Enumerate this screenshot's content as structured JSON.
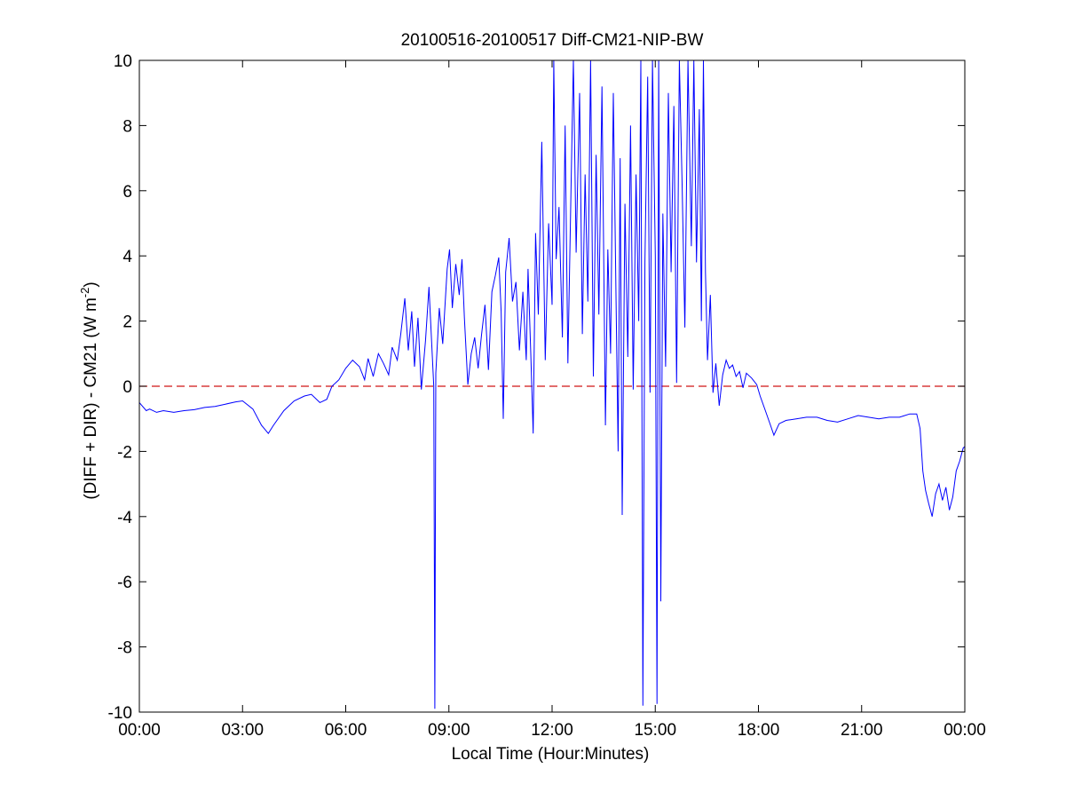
{
  "chart_data": {
    "type": "line",
    "title": "20100516-20100517 Diff-CM21-NIP-BW",
    "xlabel": "Local Time (Hour:Minutes)",
    "ylabel_main": "(DIFF + DIR) - CM21 (W m",
    "ylabel_sup": "-2",
    "ylabel_close": ")",
    "xlim": [
      0,
      24
    ],
    "ylim": [
      -10,
      10
    ],
    "x_ticks": [
      0,
      3,
      6,
      9,
      12,
      15,
      18,
      21,
      24
    ],
    "x_tick_labels": [
      "00:00",
      "03:00",
      "06:00",
      "09:00",
      "12:00",
      "15:00",
      "18:00",
      "21:00",
      "00:00"
    ],
    "y_ticks": [
      -10,
      -8,
      -6,
      -4,
      -2,
      0,
      2,
      4,
      6,
      8,
      10
    ],
    "y_tick_labels": [
      "-10",
      "-8",
      "-6",
      "-4",
      "-2",
      "0",
      "2",
      "4",
      "6",
      "8",
      "10"
    ],
    "colors": {
      "series": "#0000ff",
      "reference": "#d01515"
    },
    "reference_line": {
      "y": 0,
      "style": "dashed"
    },
    "series": [
      {
        "color": "#0000ff",
        "points": [
          [
            0.0,
            -0.5
          ],
          [
            0.2,
            -0.75
          ],
          [
            0.3,
            -0.7
          ],
          [
            0.5,
            -0.8
          ],
          [
            0.7,
            -0.75
          ],
          [
            1.0,
            -0.8
          ],
          [
            1.3,
            -0.75
          ],
          [
            1.6,
            -0.72
          ],
          [
            1.9,
            -0.65
          ],
          [
            2.2,
            -0.62
          ],
          [
            2.5,
            -0.55
          ],
          [
            2.8,
            -0.48
          ],
          [
            3.0,
            -0.45
          ],
          [
            3.3,
            -0.7
          ],
          [
            3.55,
            -1.2
          ],
          [
            3.75,
            -1.45
          ],
          [
            3.9,
            -1.2
          ],
          [
            4.2,
            -0.75
          ],
          [
            4.5,
            -0.45
          ],
          [
            4.8,
            -0.3
          ],
          [
            5.0,
            -0.25
          ],
          [
            5.25,
            -0.5
          ],
          [
            5.45,
            -0.4
          ],
          [
            5.6,
            0.0
          ],
          [
            5.8,
            0.2
          ],
          [
            6.0,
            0.55
          ],
          [
            6.2,
            0.8
          ],
          [
            6.4,
            0.6
          ],
          [
            6.55,
            0.2
          ],
          [
            6.65,
            0.85
          ],
          [
            6.8,
            0.3
          ],
          [
            6.95,
            1.0
          ],
          [
            7.1,
            0.7
          ],
          [
            7.25,
            0.35
          ],
          [
            7.35,
            1.2
          ],
          [
            7.5,
            0.8
          ],
          [
            7.6,
            1.6
          ],
          [
            7.72,
            2.7
          ],
          [
            7.82,
            1.1
          ],
          [
            7.92,
            2.3
          ],
          [
            8.0,
            0.6
          ],
          [
            8.1,
            2.1
          ],
          [
            8.2,
            -0.1
          ],
          [
            8.32,
            1.4
          ],
          [
            8.42,
            3.05
          ],
          [
            8.52,
            0.9
          ],
          [
            8.56,
            0.0
          ],
          [
            8.59,
            -9.9
          ],
          [
            8.62,
            0.4
          ],
          [
            8.72,
            2.4
          ],
          [
            8.82,
            1.3
          ],
          [
            8.95,
            3.6
          ],
          [
            9.02,
            4.2
          ],
          [
            9.1,
            2.4
          ],
          [
            9.2,
            3.75
          ],
          [
            9.3,
            2.8
          ],
          [
            9.38,
            3.9
          ],
          [
            9.45,
            2.1
          ],
          [
            9.55,
            0.05
          ],
          [
            9.65,
            1.0
          ],
          [
            9.75,
            1.5
          ],
          [
            9.85,
            0.55
          ],
          [
            9.95,
            1.6
          ],
          [
            10.05,
            2.5
          ],
          [
            10.15,
            0.5
          ],
          [
            10.25,
            2.9
          ],
          [
            10.35,
            3.4
          ],
          [
            10.45,
            3.95
          ],
          [
            10.52,
            2.3
          ],
          [
            10.58,
            -1.0
          ],
          [
            10.65,
            3.5
          ],
          [
            10.75,
            4.55
          ],
          [
            10.85,
            2.6
          ],
          [
            10.95,
            3.2
          ],
          [
            11.05,
            1.1
          ],
          [
            11.15,
            2.9
          ],
          [
            11.25,
            0.8
          ],
          [
            11.3,
            3.6
          ],
          [
            11.38,
            1.0
          ],
          [
            11.45,
            -1.45
          ],
          [
            11.52,
            4.7
          ],
          [
            11.6,
            2.2
          ],
          [
            11.7,
            7.5
          ],
          [
            11.8,
            0.8
          ],
          [
            11.9,
            5.0
          ],
          [
            12.0,
            2.5
          ],
          [
            12.05,
            10.0
          ],
          [
            12.12,
            3.9
          ],
          [
            12.2,
            5.5
          ],
          [
            12.3,
            1.5
          ],
          [
            12.38,
            8.0
          ],
          [
            12.46,
            0.7
          ],
          [
            12.55,
            6.0
          ],
          [
            12.62,
            10.0
          ],
          [
            12.7,
            4.1
          ],
          [
            12.8,
            9.0
          ],
          [
            12.88,
            1.6
          ],
          [
            12.96,
            6.5
          ],
          [
            13.04,
            2.6
          ],
          [
            13.12,
            10.0
          ],
          [
            13.2,
            0.3
          ],
          [
            13.28,
            7.1
          ],
          [
            13.36,
            2.2
          ],
          [
            13.45,
            9.2
          ],
          [
            13.55,
            -1.2
          ],
          [
            13.62,
            4.2
          ],
          [
            13.7,
            1.0
          ],
          [
            13.78,
            9.0
          ],
          [
            13.86,
            2.6
          ],
          [
            13.92,
            -2.0
          ],
          [
            13.98,
            7.0
          ],
          [
            14.04,
            -3.95
          ],
          [
            14.12,
            5.6
          ],
          [
            14.2,
            0.9
          ],
          [
            14.28,
            8.0
          ],
          [
            14.36,
            -0.1
          ],
          [
            14.44,
            6.5
          ],
          [
            14.52,
            2.0
          ],
          [
            14.58,
            10.0
          ],
          [
            14.64,
            -9.8
          ],
          [
            14.7,
            3.8
          ],
          [
            14.78,
            9.5
          ],
          [
            14.85,
            -0.2
          ],
          [
            14.92,
            10.0
          ],
          [
            15.0,
            4.0
          ],
          [
            15.05,
            -9.75
          ],
          [
            15.1,
            10.0
          ],
          [
            15.16,
            -6.6
          ],
          [
            15.22,
            5.3
          ],
          [
            15.3,
            0.6
          ],
          [
            15.38,
            9.0
          ],
          [
            15.46,
            3.5
          ],
          [
            15.54,
            8.6
          ],
          [
            15.62,
            0.1
          ],
          [
            15.7,
            10.0
          ],
          [
            15.78,
            6.2
          ],
          [
            15.86,
            1.8
          ],
          [
            15.95,
            10.0
          ],
          [
            16.05,
            4.3
          ],
          [
            16.12,
            10.0
          ],
          [
            16.2,
            3.8
          ],
          [
            16.28,
            8.5
          ],
          [
            16.34,
            2.0
          ],
          [
            16.4,
            10.0
          ],
          [
            16.46,
            3.5
          ],
          [
            16.52,
            0.8
          ],
          [
            16.6,
            2.8
          ],
          [
            16.68,
            -0.2
          ],
          [
            16.76,
            0.7
          ],
          [
            16.86,
            -0.6
          ],
          [
            16.96,
            0.35
          ],
          [
            17.06,
            0.8
          ],
          [
            17.15,
            0.55
          ],
          [
            17.25,
            0.65
          ],
          [
            17.35,
            0.3
          ],
          [
            17.45,
            0.45
          ],
          [
            17.55,
            -0.05
          ],
          [
            17.65,
            0.4
          ],
          [
            17.8,
            0.25
          ],
          [
            17.95,
            0.05
          ],
          [
            18.05,
            -0.3
          ],
          [
            18.2,
            -0.75
          ],
          [
            18.35,
            -1.2
          ],
          [
            18.45,
            -1.5
          ],
          [
            18.6,
            -1.15
          ],
          [
            18.8,
            -1.05
          ],
          [
            19.1,
            -1.0
          ],
          [
            19.4,
            -0.95
          ],
          [
            19.7,
            -0.95
          ],
          [
            20.0,
            -1.05
          ],
          [
            20.3,
            -1.1
          ],
          [
            20.6,
            -1.0
          ],
          [
            20.9,
            -0.9
          ],
          [
            21.2,
            -0.95
          ],
          [
            21.5,
            -1.0
          ],
          [
            21.8,
            -0.95
          ],
          [
            22.1,
            -0.95
          ],
          [
            22.4,
            -0.85
          ],
          [
            22.6,
            -0.85
          ],
          [
            22.7,
            -1.3
          ],
          [
            22.78,
            -2.6
          ],
          [
            22.86,
            -3.2
          ],
          [
            22.95,
            -3.6
          ],
          [
            23.05,
            -4.0
          ],
          [
            23.15,
            -3.3
          ],
          [
            23.25,
            -3.0
          ],
          [
            23.35,
            -3.5
          ],
          [
            23.45,
            -3.1
          ],
          [
            23.55,
            -3.8
          ],
          [
            23.65,
            -3.4
          ],
          [
            23.75,
            -2.6
          ],
          [
            23.85,
            -2.3
          ],
          [
            23.95,
            -1.9
          ],
          [
            24.0,
            -1.85
          ]
        ]
      }
    ]
  }
}
